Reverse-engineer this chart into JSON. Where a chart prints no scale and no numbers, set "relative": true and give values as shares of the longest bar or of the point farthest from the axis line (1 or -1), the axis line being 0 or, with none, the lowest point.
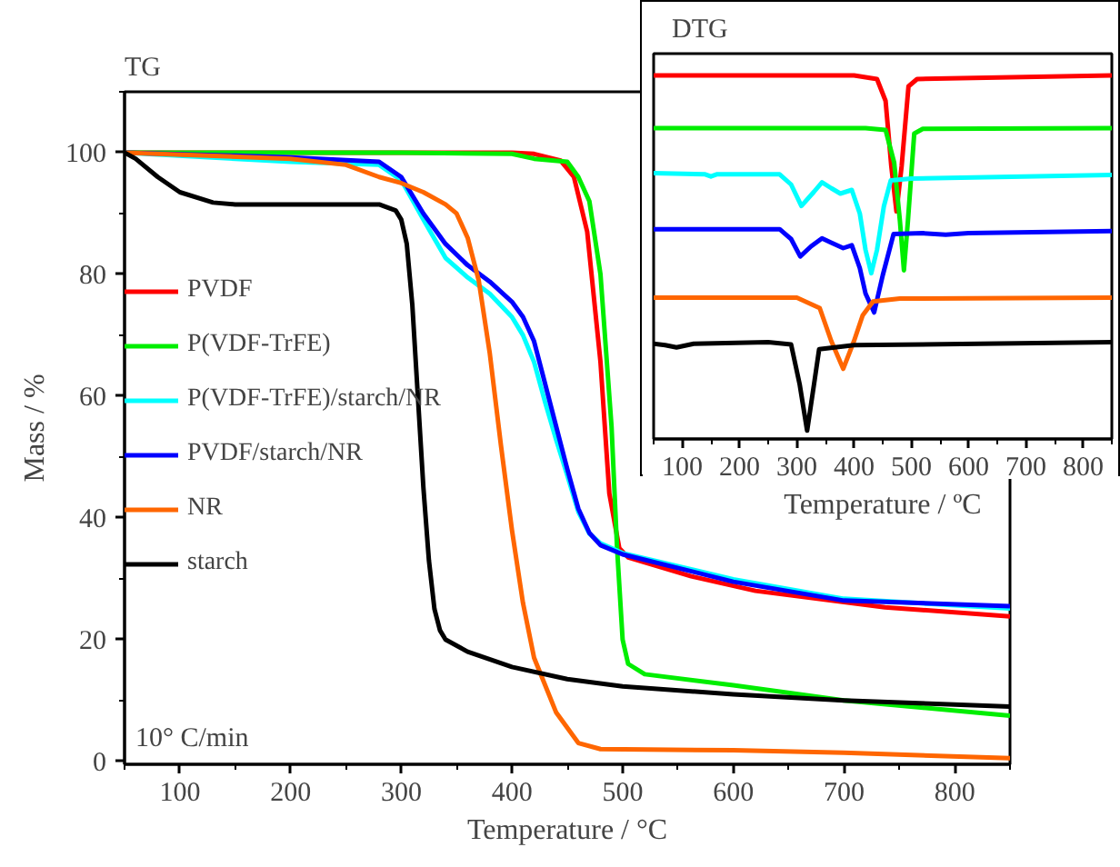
{
  "chart_data": [
    {
      "type": "line",
      "title": "TG",
      "xlabel": "Temperature / °C",
      "ylabel": "Mass / %",
      "annotations": [
        "10° C/min"
      ],
      "xlim": [
        50,
        850
      ],
      "ylim": [
        -0.5,
        110
      ],
      "xticks": [
        100,
        200,
        300,
        400,
        500,
        600,
        700,
        800
      ],
      "yticks": [
        0,
        20,
        40,
        60,
        80,
        100
      ],
      "grid": false,
      "legend": "left",
      "line_style": "solid",
      "marker": "none",
      "series": [
        {
          "name": "PVDF",
          "color": "#ff0000",
          "x": [
            50,
            200,
            300,
            400,
            420,
            444,
            456,
            468,
            480,
            488,
            497,
            505,
            562,
            620,
            737,
            850
          ],
          "values": [
            100,
            100,
            100,
            100,
            99.8,
            98.7,
            96,
            87,
            65.6,
            44,
            35,
            33.5,
            30.4,
            28,
            25.3,
            23.8
          ]
        },
        {
          "name": "P(VDF-TrFE)",
          "color": "#00ee00",
          "x": [
            50,
            200,
            300,
            400,
            420,
            450,
            460,
            470,
            480,
            490,
            495,
            500,
            505,
            520,
            600,
            700,
            850
          ],
          "values": [
            100,
            100,
            100,
            99.8,
            99,
            98.5,
            96,
            92,
            80,
            55,
            35,
            20,
            16,
            14.3,
            12.5,
            10,
            7.5
          ]
        },
        {
          "name": "P(VDF-TrFE)/starch/NR",
          "color": "#00ffff",
          "x": [
            50,
            150,
            200,
            280,
            300,
            320,
            340,
            360,
            380,
            400,
            410,
            420,
            430,
            440,
            450,
            460,
            470,
            480,
            500,
            600,
            700,
            850
          ],
          "values": [
            100,
            99,
            98.5,
            98,
            95.5,
            89,
            82.7,
            79.5,
            76.8,
            73,
            70,
            65.6,
            59,
            52.8,
            47,
            41,
            37.4,
            35.8,
            34.2,
            29.9,
            26.7,
            25.1
          ]
        },
        {
          "name": "PVDF/starch/NR",
          "color": "#0000ff",
          "x": [
            50,
            150,
            200,
            280,
            300,
            320,
            340,
            360,
            380,
            400,
            410,
            420,
            430,
            440,
            450,
            460,
            470,
            480,
            500,
            600,
            700,
            850
          ],
          "values": [
            100,
            99.5,
            99.2,
            98.5,
            96,
            90,
            85,
            81.5,
            78.8,
            75.5,
            73,
            69,
            62,
            55,
            48,
            41.5,
            37.5,
            35.5,
            34,
            29.5,
            26.4,
            25.5
          ]
        },
        {
          "name": "NR",
          "color": "#ff6600",
          "x": [
            50,
            200,
            250,
            280,
            300,
            320,
            340,
            350,
            360,
            370,
            380,
            390,
            400,
            410,
            420,
            440,
            460,
            480,
            600,
            700,
            850
          ],
          "values": [
            100,
            99,
            98,
            96,
            95,
            93.5,
            91.5,
            90,
            86,
            79,
            67,
            52,
            38,
            26,
            17,
            8,
            3,
            2,
            1.8,
            1.4,
            0.5
          ]
        },
        {
          "name": "starch",
          "color": "#000000",
          "x": [
            50,
            60,
            80,
            100,
            130,
            150,
            280,
            295,
            300,
            305,
            310,
            315,
            320,
            325,
            330,
            335,
            340,
            360,
            400,
            450,
            500,
            600,
            700,
            850
          ],
          "values": [
            100,
            99,
            96,
            93.5,
            91.8,
            91.5,
            91.5,
            90.5,
            89,
            85,
            75,
            60,
            45,
            33,
            25,
            21.5,
            20,
            18,
            15.5,
            13.5,
            12.3,
            11,
            10,
            9
          ]
        }
      ]
    },
    {
      "type": "line",
      "title": "DTG",
      "xlabel": "Temperature / ºC",
      "relative": true,
      "tick_labels": "x",
      "xlim": [
        50,
        850
      ],
      "xticks": [
        100,
        200,
        300,
        400,
        500,
        600,
        700,
        800
      ],
      "grid": false,
      "legend": false,
      "line_style": "solid",
      "marker": "none",
      "series": [
        {
          "color": "#ff0000",
          "x": [
            50,
            400,
            440,
            455,
            465,
            474,
            483,
            495,
            510,
            850
          ],
          "values": [
            1.0,
            1.0,
            0.99,
            0.93,
            0.75,
            0.626,
            0.75,
            0.97,
            0.99,
            1.0
          ]
        },
        {
          "color": "#00ee00",
          "x": [
            50,
            420,
            455,
            470,
            480,
            487,
            494,
            505,
            520,
            850
          ],
          "values": [
            0.855,
            0.855,
            0.85,
            0.76,
            0.6,
            0.464,
            0.6,
            0.84,
            0.853,
            0.855
          ]
        },
        {
          "color": "#00ffff",
          "x": [
            50,
            140,
            150,
            160,
            270,
            290,
            308,
            330,
            344,
            360,
            376,
            396,
            410,
            420,
            430,
            440,
            452,
            464,
            500,
            850
          ],
          "values": [
            0.731,
            0.728,
            0.722,
            0.728,
            0.728,
            0.7,
            0.641,
            0.68,
            0.706,
            0.69,
            0.675,
            0.685,
            0.62,
            0.52,
            0.456,
            0.52,
            0.64,
            0.711,
            0.716,
            0.726
          ]
        },
        {
          "color": "#0000ff",
          "x": [
            50,
            270,
            290,
            306,
            325,
            344,
            360,
            381,
            396,
            410,
            420,
            435,
            450,
            469,
            520,
            560,
            600,
            850
          ],
          "values": [
            0.577,
            0.577,
            0.55,
            0.502,
            0.53,
            0.552,
            0.54,
            0.525,
            0.533,
            0.47,
            0.4,
            0.348,
            0.45,
            0.564,
            0.566,
            0.562,
            0.566,
            0.572
          ]
        },
        {
          "color": "#ff6600",
          "x": [
            50,
            300,
            340,
            360,
            381,
            400,
            415,
            433,
            480,
            850
          ],
          "values": [
            0.389,
            0.389,
            0.36,
            0.27,
            0.193,
            0.27,
            0.34,
            0.378,
            0.386,
            0.389
          ]
        },
        {
          "color": "#000000",
          "x": [
            50,
            70,
            90,
            120,
            250,
            290,
            305,
            318,
            330,
            339,
            400,
            850
          ],
          "values": [
            0.262,
            0.258,
            0.252,
            0.262,
            0.266,
            0.26,
            0.15,
            0.023,
            0.15,
            0.247,
            0.258,
            0.266
          ]
        }
      ]
    }
  ]
}
